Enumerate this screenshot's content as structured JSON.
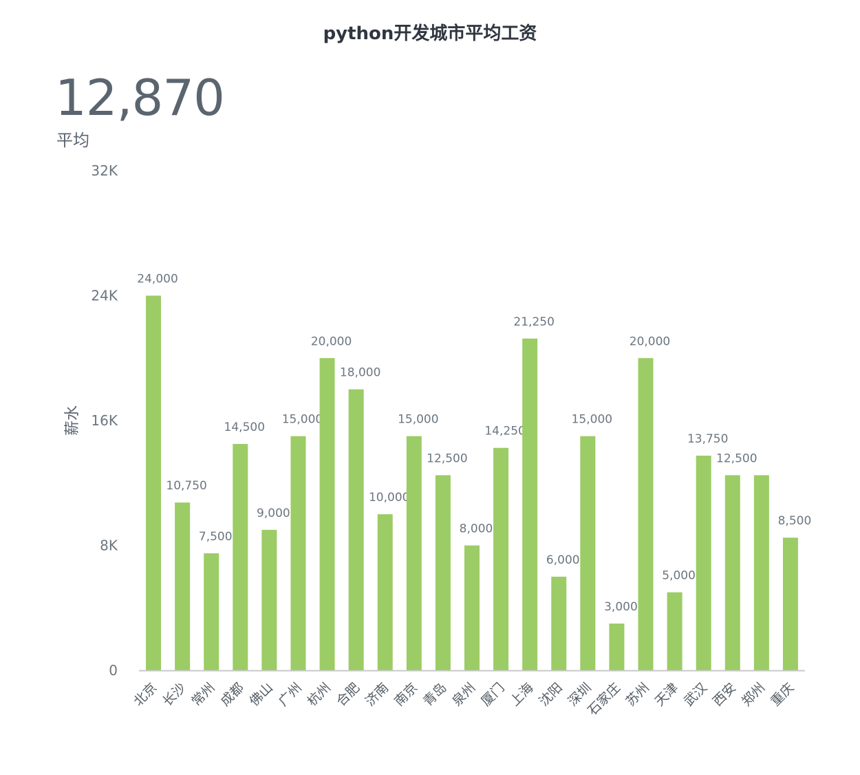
{
  "header": {
    "title": "python开发城市平均工资"
  },
  "kpi": {
    "value": "12,870",
    "label": "平均"
  },
  "colors": {
    "bar": "#9ccc65",
    "axis": "#c8c8c8",
    "text": "#6b7680"
  },
  "chart_data": {
    "type": "bar",
    "title": "python开发城市平均工资",
    "xlabel": "",
    "ylabel": "薪水",
    "ylim": [
      0,
      32000
    ],
    "y_ticks": [
      0,
      8000,
      16000,
      24000,
      32000
    ],
    "y_tick_labels": [
      "0",
      "8K",
      "16K",
      "24K",
      "32K"
    ],
    "grid": false,
    "categories": [
      "北京",
      "长沙",
      "常州",
      "成都",
      "佛山",
      "广州",
      "杭州",
      "合肥",
      "济南",
      "南京",
      "青岛",
      "泉州",
      "厦门",
      "上海",
      "沈阳",
      "深圳",
      "石家庄",
      "苏州",
      "天津",
      "武汉",
      "西安",
      "郑州",
      "重庆"
    ],
    "values": [
      24000,
      10750,
      7500,
      14500,
      9000,
      15000,
      20000,
      18000,
      10000,
      15000,
      12500,
      8000,
      14250,
      21250,
      6000,
      15000,
      3000,
      20000,
      5000,
      13750,
      12500,
      12500,
      8500
    ],
    "data_labels": [
      "24,000",
      "10,750",
      "7,500",
      "14,500",
      "9,000",
      "15,000",
      "20,000",
      "18,000",
      "10,000",
      "15,000",
      "12,500",
      "8,000",
      "14,250",
      "21,250",
      "6,000",
      "15,000",
      "3,000",
      "20,000",
      "5,000",
      "13,750",
      "12,500",
      "",
      "8,500"
    ]
  }
}
